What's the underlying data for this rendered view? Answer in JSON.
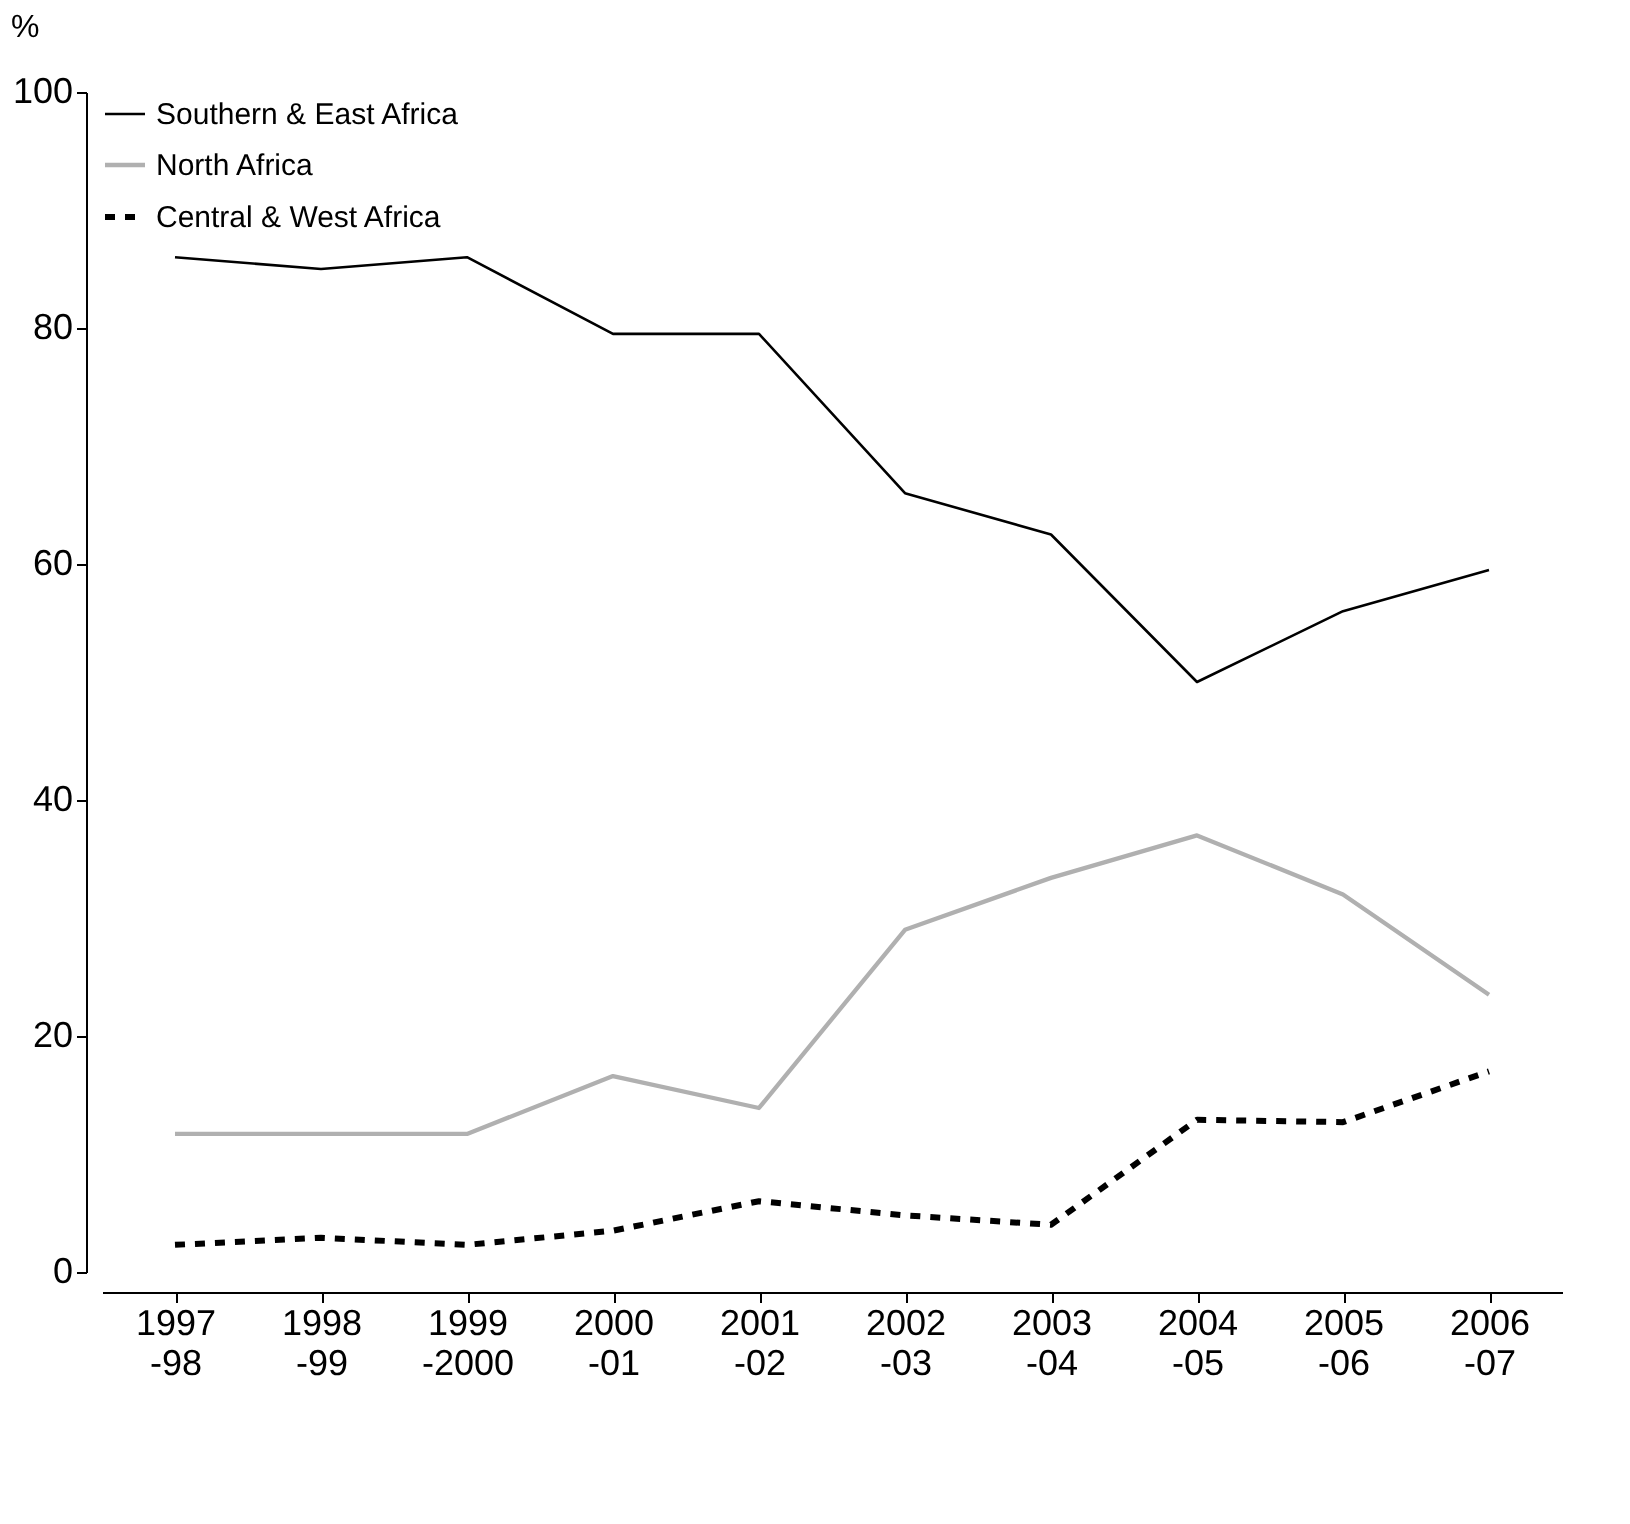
{
  "chart_data": {
    "type": "line",
    "ylabel": "%",
    "categories": [
      "1997\n-98",
      "1998\n-99",
      "1999\n-2000",
      "2000\n-01",
      "2001\n-02",
      "2002\n-03",
      "2003\n-04",
      "2004\n-05",
      "2005\n-06",
      "2006\n-07"
    ],
    "series": [
      {
        "name": "Southern & East Africa",
        "color": "#000000",
        "line_style": "solid",
        "values": [
          86,
          85,
          86,
          79.5,
          79.5,
          66,
          62.5,
          50,
          56,
          59.5
        ]
      },
      {
        "name": "North Africa",
        "color": "#b0b0b0",
        "line_style": "solid",
        "values": [
          11.7,
          11.7,
          11.7,
          16.6,
          13.9,
          29,
          33.4,
          37,
          32,
          23.5
        ]
      },
      {
        "name": "Central & West Africa",
        "color": "#000000",
        "line_style": "dashed",
        "values": [
          2.3,
          2.9,
          2.3,
          3.5,
          6,
          4.8,
          4,
          12.9,
          12.7,
          17
        ]
      }
    ],
    "ylim": [
      0,
      100
    ],
    "yticks": [
      0,
      20,
      40,
      60,
      80,
      100
    ],
    "grid": false,
    "legend": "top left",
    "marker": "none"
  }
}
